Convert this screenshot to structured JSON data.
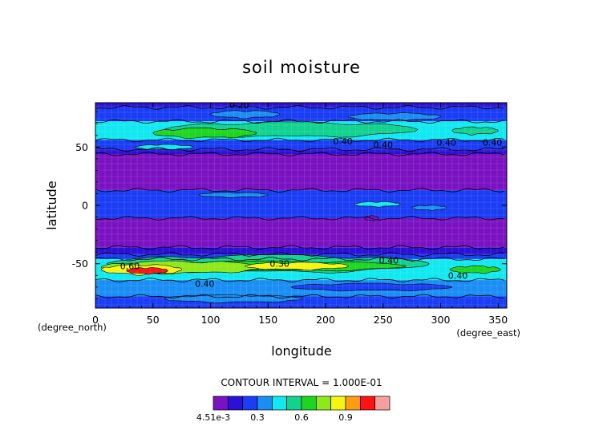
{
  "chart_data": {
    "type": "heatmap",
    "title": "soil moisture",
    "xlabel": "longitude",
    "ylabel": "latitude",
    "x_units": "(degree_east)",
    "y_units": "(degree_north)",
    "xlim": [
      0,
      357.5
    ],
    "ylim": [
      -88,
      88
    ],
    "x_ticks": [
      0,
      50,
      100,
      150,
      200,
      250,
      300,
      350
    ],
    "y_ticks": [
      50,
      0,
      -50
    ],
    "contour_interval_text": "CONTOUR INTERVAL = 1.000E-01",
    "colorbar": {
      "min": 0.00451,
      "max": 1.0,
      "tick_labels": [
        {
          "text": "4.51e-3",
          "value": 0.0
        },
        {
          "text": "0.3",
          "value": 0.3
        },
        {
          "text": "0.6",
          "value": 0.6
        },
        {
          "text": "0.9",
          "value": 0.9
        }
      ],
      "levels": [
        {
          "from": 0.0,
          "to": 0.1,
          "color": "#7a12c2"
        },
        {
          "from": 0.1,
          "to": 0.2,
          "color": "#2c10d8"
        },
        {
          "from": 0.2,
          "to": 0.3,
          "color": "#1a3df5"
        },
        {
          "from": 0.3,
          "to": 0.4,
          "color": "#1a8ef5"
        },
        {
          "from": 0.4,
          "to": 0.5,
          "color": "#12e8f0"
        },
        {
          "from": 0.5,
          "to": 0.6,
          "color": "#12d28f"
        },
        {
          "from": 0.6,
          "to": 0.7,
          "color": "#1ed61e"
        },
        {
          "from": 0.7,
          "to": 0.8,
          "color": "#8fe81a"
        },
        {
          "from": 0.8,
          "to": 0.9,
          "color": "#f5f512"
        },
        {
          "from": 0.9,
          "to": 1.0,
          "color": "#ff9c12"
        },
        {
          "from": 1.0,
          "to": 1.1,
          "color": "#ff1212"
        },
        {
          "from": 1.1,
          "to": 1.2,
          "color": "#f5a0a0"
        }
      ]
    },
    "latitude_bands": [
      {
        "lat_from": 88,
        "lat_to": 84,
        "level": 1
      },
      {
        "lat_from": 84,
        "lat_to": 72,
        "level": 2
      },
      {
        "lat_from": 72,
        "lat_to": 56,
        "level": 4
      },
      {
        "lat_from": 56,
        "lat_to": 48,
        "level": 2
      },
      {
        "lat_from": 48,
        "lat_to": 44,
        "level": 1
      },
      {
        "lat_from": 44,
        "lat_to": 13,
        "level": 0
      },
      {
        "lat_from": 13,
        "lat_to": -11,
        "level": 2
      },
      {
        "lat_from": -11,
        "lat_to": -36,
        "level": 0
      },
      {
        "lat_from": -36,
        "lat_to": -42,
        "level": 1
      },
      {
        "lat_from": -42,
        "lat_to": -46,
        "level": 2
      },
      {
        "lat_from": -46,
        "lat_to": -64,
        "level": 4
      },
      {
        "lat_from": -64,
        "lat_to": -78,
        "level": 3
      },
      {
        "lat_from": -78,
        "lat_to": -88,
        "level": 2
      }
    ],
    "features": [
      {
        "lon": 170,
        "lat": 65,
        "rx": 110,
        "ry": 6,
        "level": 5
      },
      {
        "lon": 95,
        "lat": 62,
        "rx": 45,
        "ry": 4,
        "level": 6
      },
      {
        "lon": 330,
        "lat": 64,
        "rx": 20,
        "ry": 3,
        "level": 5
      },
      {
        "lon": 130,
        "lat": 78,
        "rx": 30,
        "ry": 3,
        "level": 3
      },
      {
        "lon": 260,
        "lat": 76,
        "rx": 40,
        "ry": 3,
        "level": 3
      },
      {
        "lon": 60,
        "lat": 50,
        "rx": 25,
        "ry": 2,
        "level": 4
      },
      {
        "lon": 150,
        "lat": -50,
        "rx": 140,
        "ry": 7,
        "level": 5
      },
      {
        "lon": 150,
        "lat": -52,
        "rx": 120,
        "ry": 4,
        "level": 6
      },
      {
        "lon": 75,
        "lat": -53,
        "rx": 70,
        "ry": 5,
        "level": 7
      },
      {
        "lon": 40,
        "lat": -55,
        "rx": 35,
        "ry": 4,
        "level": 8
      },
      {
        "lon": 45,
        "lat": -56,
        "rx": 18,
        "ry": 2.5,
        "level": 10
      },
      {
        "lon": 175,
        "lat": -52,
        "rx": 45,
        "ry": 3,
        "level": 8
      },
      {
        "lon": 330,
        "lat": -55,
        "rx": 22,
        "ry": 3,
        "level": 6
      },
      {
        "lon": 240,
        "lat": -70,
        "rx": 70,
        "ry": 3,
        "level": 2
      },
      {
        "lon": 120,
        "lat": -80,
        "rx": 60,
        "ry": 3,
        "level": 3
      },
      {
        "lon": 120,
        "lat": 9,
        "rx": 30,
        "ry": 2,
        "level": 3
      },
      {
        "lon": 245,
        "lat": 1,
        "rx": 20,
        "ry": 2,
        "level": 4
      },
      {
        "lon": 290,
        "lat": -2,
        "rx": 15,
        "ry": 2,
        "level": 3
      },
      {
        "lon": 240,
        "lat": -11,
        "rx": 6,
        "ry": 2,
        "level": 0
      }
    ],
    "contour_labels": [
      {
        "text": "0.20",
        "lon": 125,
        "lat": 86
      },
      {
        "text": "0.40",
        "lon": 215,
        "lat": 55
      },
      {
        "text": "0.40",
        "lon": 250,
        "lat": 52
      },
      {
        "text": "0.40",
        "lon": 305,
        "lat": 54
      },
      {
        "text": "0.40",
        "lon": 345,
        "lat": 54
      },
      {
        "text": "0.60",
        "lon": 30,
        "lat": -52
      },
      {
        "text": "0.30",
        "lon": 160,
        "lat": -50
      },
      {
        "text": "0.40",
        "lon": 255,
        "lat": -47
      },
      {
        "text": "0.40",
        "lon": 95,
        "lat": -67
      },
      {
        "text": "0.40",
        "lon": 315,
        "lat": -60
      }
    ]
  }
}
